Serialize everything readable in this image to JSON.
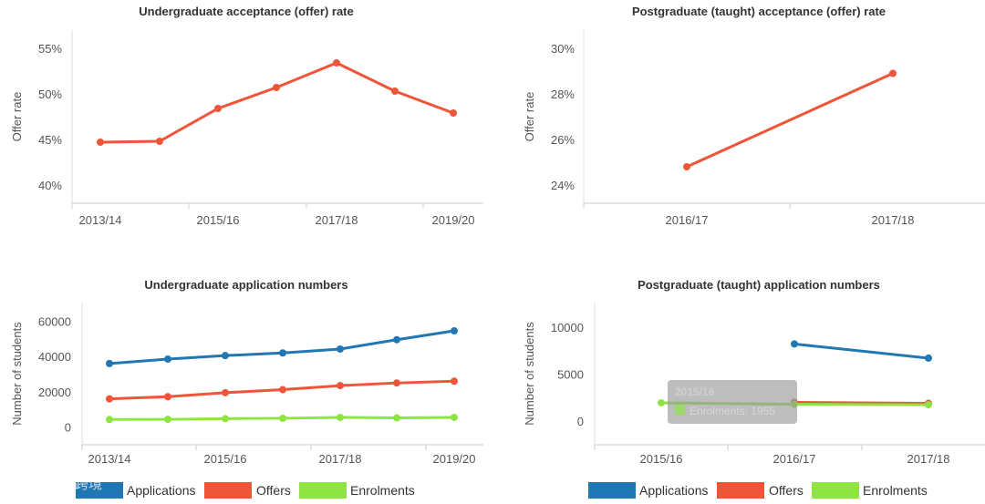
{
  "colors": {
    "applications": "#1f77b4",
    "offers": "#f0553a",
    "enrolments": "#8ee542",
    "axis": "#cccccc"
  },
  "legends": [
    {
      "items": [
        "Applications",
        "Offers",
        "Enrolments"
      ]
    },
    {
      "items": [
        "Applications",
        "Offers",
        "Enrolments"
      ]
    }
  ],
  "tooltip": {
    "title": "2015/16",
    "label": "Enrolments: 1955"
  },
  "watermark": "大数跨境",
  "chart_data": [
    {
      "id": "ug-offer-rate",
      "type": "line",
      "title": "Undergraduate acceptance (offer) rate",
      "ylabel": "Offer rate",
      "x": [
        "2013/14",
        "2014/15",
        "2015/16",
        "2016/17",
        "2017/18",
        "2018/19",
        "2019/20"
      ],
      "xtick_labels": [
        "2013/14",
        "",
        "2015/16",
        "",
        "2017/18",
        "",
        "2019/20"
      ],
      "ylim": [
        38,
        57
      ],
      "yticks": [
        40,
        45,
        50,
        55
      ],
      "ytick_labels": [
        "40%",
        "45%",
        "50%",
        "55%"
      ],
      "series": [
        {
          "name": "Offer rate",
          "color": "#f0553a",
          "values": [
            44.7,
            44.8,
            48.4,
            50.7,
            53.4,
            50.3,
            47.9
          ]
        }
      ]
    },
    {
      "id": "pg-offer-rate",
      "type": "line",
      "title": "Postgraduate (taught) acceptance (offer) rate",
      "ylabel": "Offer rate",
      "x": [
        "2016/17",
        "2017/18"
      ],
      "xtick_labels": [
        "2016/17",
        "2017/18"
      ],
      "ylim": [
        23.2,
        30.8
      ],
      "yticks": [
        24,
        26,
        28,
        30
      ],
      "ytick_labels": [
        "24%",
        "26%",
        "28%",
        "30%"
      ],
      "series": [
        {
          "name": "Offer rate",
          "color": "#f0553a",
          "values": [
            24.8,
            28.9
          ]
        }
      ]
    },
    {
      "id": "ug-applications",
      "type": "line",
      "title": "Undergraduate application numbers",
      "ylabel": "Number of students",
      "x": [
        "2013/14",
        "2014/15",
        "2015/16",
        "2016/17",
        "2017/18",
        "2018/19",
        "2019/20"
      ],
      "xtick_labels": [
        "2013/14",
        "",
        "2015/16",
        "",
        "2017/18",
        "",
        "2019/20"
      ],
      "ylim": [
        -10000,
        70000
      ],
      "yticks": [
        0,
        20000,
        40000,
        60000
      ],
      "ytick_labels": [
        "0",
        "20000",
        "40000",
        "60000"
      ],
      "series": [
        {
          "name": "Applications",
          "color": "#1f77b4",
          "values": [
            36000,
            38500,
            40500,
            42000,
            44200,
            49500,
            54500
          ]
        },
        {
          "name": "Offers",
          "color": "#f0553a",
          "values": [
            16000,
            17200,
            19500,
            21200,
            23500,
            25000,
            26000
          ]
        },
        {
          "name": "Enrolments",
          "color": "#8ee542",
          "values": [
            4300,
            4400,
            4800,
            5000,
            5500,
            5200,
            5500
          ]
        }
      ]
    },
    {
      "id": "pg-applications",
      "type": "line",
      "title": "Postgraduate (taught) application numbers",
      "ylabel": "Number of students",
      "x": [
        "2015/16",
        "2016/17",
        "2017/18"
      ],
      "xtick_labels": [
        "2015/16",
        "2016/17",
        "2017/18"
      ],
      "ylim": [
        -2500,
        12500
      ],
      "yticks": [
        0,
        5000,
        10000
      ],
      "ytick_labels": [
        "0",
        "5000",
        "10000"
      ],
      "series": [
        {
          "name": "Applications",
          "color": "#1f77b4",
          "values": [
            null,
            8200,
            6700
          ]
        },
        {
          "name": "Offers",
          "color": "#f0553a",
          "values": [
            null,
            2000,
            1900
          ]
        },
        {
          "name": "Enrolments",
          "color": "#8ee542",
          "values": [
            1955,
            1800,
            1750
          ]
        }
      ]
    }
  ]
}
